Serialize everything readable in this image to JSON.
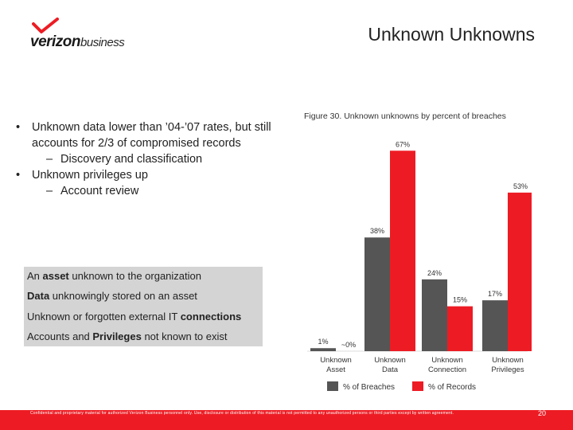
{
  "slide": {
    "title": "Unknown Unknowns",
    "logo": {
      "word": "verizon",
      "suffix": "business",
      "icon": "verizon-check-icon",
      "color": "#ed1c24"
    },
    "bullets": [
      {
        "text": "Unknown data lower than ’04-’07 rates, but still accounts for 2/3 of compromised records",
        "sub": [
          "Discovery and classification"
        ]
      },
      {
        "text": "Unknown privileges up",
        "sub": [
          "Account review"
        ]
      }
    ],
    "box": [
      {
        "pre": "An ",
        "bold": "asset",
        "post": " unknown to the organization"
      },
      {
        "pre": "",
        "bold": "Data",
        "post": " unknowingly stored on an asset"
      },
      {
        "pre": "Unknown or forgotten external IT ",
        "bold": "connections",
        "post": ""
      },
      {
        "pre": "Accounts and ",
        "bold": "Privileges",
        "post": " not known to exist"
      }
    ],
    "footer": "Confidential and proprietary material for authorized Verizon Business personnel only. Use, disclosure or distribution of this material is not permitted to any unauthorized persons or third parties except by written agreement.",
    "page_number": "20"
  },
  "chart_data": {
    "type": "bar",
    "title": "Figure 30. Unknown unknowns by percent of breaches",
    "categories": [
      "Unknown Asset",
      "Unknown Data",
      "Unknown Connection",
      "Unknown Privileges"
    ],
    "series": [
      {
        "name": "% of Breaches",
        "color": "#555555",
        "values": [
          1,
          38,
          24,
          17
        ],
        "labels": [
          "1%",
          "38%",
          "24%",
          "17%"
        ]
      },
      {
        "name": "% of Records",
        "color": "#ed1c24",
        "values": [
          0,
          67,
          15,
          53
        ],
        "labels": [
          "~0%",
          "67%",
          "15%",
          "53%"
        ]
      }
    ],
    "ylim": [
      0,
      70
    ],
    "grid": false,
    "legend": "bottom"
  }
}
